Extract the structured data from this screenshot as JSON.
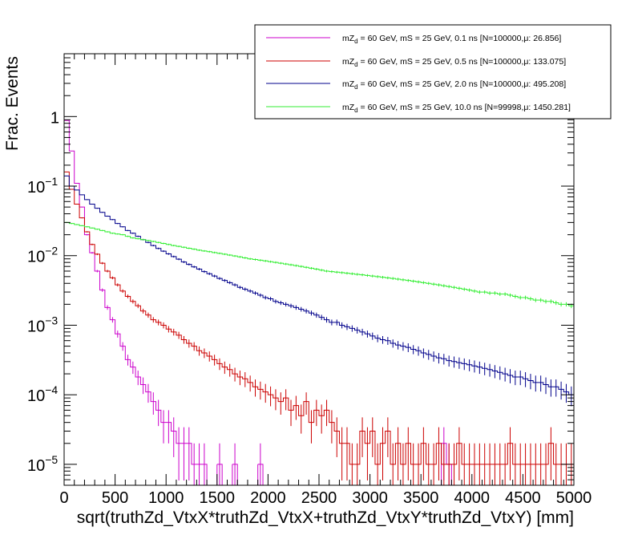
{
  "chart_data": {
    "type": "line",
    "style": "step-histogram-with-error-bars",
    "xlabel": "sqrt(truthZd_VtxX*truthZd_VtxX+truthZd_VtxY*truthZd_VtxY) [mm]",
    "ylabel": "Frac. Events",
    "xlim": [
      0,
      5000
    ],
    "ylim": [
      5e-06,
      8
    ],
    "y_scale": "log",
    "x_ticks": [
      0,
      500,
      1000,
      1500,
      2000,
      2500,
      3000,
      3500,
      4000,
      4500,
      5000
    ],
    "x_tick_labels": [
      "0",
      "500",
      "1000",
      "1500",
      "2000",
      "2500",
      "3000",
      "3500",
      "4000",
      "4500",
      "5000"
    ],
    "y_ticks": [
      1e-05,
      0.0001,
      0.001,
      0.01,
      0.1,
      1
    ],
    "y_tick_labels": [
      {
        "base": "10",
        "exp": "−5"
      },
      {
        "base": "10",
        "exp": "−4"
      },
      {
        "base": "10",
        "exp": "−3"
      },
      {
        "base": "10",
        "exp": "−2"
      },
      {
        "base": "10",
        "exp": "−1"
      },
      {
        "base": "1",
        "exp": ""
      }
    ],
    "bin_width": 50,
    "grid": false,
    "legend_position": "top-right",
    "series": [
      {
        "name": "mZ_d = 60 GeV, mS = 25 GeV, 0.1 ns [N=100000,μ: 26.856]",
        "name_pre": "mZ",
        "name_sub": "d",
        "name_post": " = 60 GeV, mS = 25 GeV, 0.1 ns [N=100000,μ: 26.856]",
        "color": "#cc00cc",
        "bins_x_start": 0,
        "values": [
          0.88,
          0.32,
          0.11,
          0.05,
          0.02,
          0.011,
          0.006,
          0.0032,
          0.0018,
          0.0012,
          0.00075,
          0.0005,
          0.00032,
          0.00025,
          0.00018,
          0.00014,
          0.00011,
          8e-05,
          6e-05,
          4e-05,
          4e-05,
          3e-05,
          2e-05,
          2e-05,
          2e-05,
          1e-05,
          1e-05,
          1e-05,
          0,
          0,
          1e-05,
          0,
          0,
          1e-05,
          0,
          0,
          0,
          0,
          1e-05,
          0,
          0,
          0,
          0,
          0,
          0,
          0,
          0,
          0,
          0,
          0,
          0,
          0,
          0,
          0,
          0,
          0,
          0,
          0,
          0,
          0,
          0,
          0,
          0,
          0,
          0,
          0,
          0,
          0,
          0,
          0,
          0,
          0,
          0,
          0,
          2e-05,
          1e-05
        ]
      },
      {
        "name": "mZ_d = 60 GeV, mS = 25 GeV, 0.5 ns [N=100000,μ: 133.075]",
        "name_pre": "mZ",
        "name_sub": "d",
        "name_post": " = 60 GeV, mS = 25 GeV, 0.5 ns [N=100000,μ: 133.075]",
        "color": "#cc0000",
        "bins_x_start": 0,
        "values": [
          0.16,
          0.09,
          0.055,
          0.035,
          0.022,
          0.0145,
          0.0105,
          0.0078,
          0.006,
          0.0048,
          0.0038,
          0.0031,
          0.0026,
          0.0022,
          0.0019,
          0.0016,
          0.0014,
          0.0012,
          0.0011,
          0.001,
          0.00088,
          0.0008,
          0.00072,
          0.00062,
          0.00055,
          0.0005,
          0.00043,
          0.0004,
          0.00036,
          0.00032,
          0.00028,
          0.00025,
          0.00023,
          0.0002,
          0.00018,
          0.00017,
          0.00015,
          0.00013,
          0.00012,
          0.00011,
          0.0001,
          9e-05,
          8e-05,
          9e-05,
          6e-05,
          7e-05,
          5e-05,
          8e-05,
          4e-05,
          6e-05,
          5e-05,
          6e-05,
          4e-05,
          3e-05,
          2e-05,
          2e-05,
          1e-05,
          1e-05,
          3e-05,
          2e-05,
          3e-05,
          1e-05,
          2e-05,
          3e-05,
          1e-05,
          2e-05,
          1e-05,
          2e-05,
          1e-05,
          1e-05,
          2e-05,
          1e-05,
          1e-05,
          2e-05,
          1e-05,
          1e-05,
          1e-05,
          2e-05,
          1e-05,
          1e-05,
          1e-05,
          1e-05,
          1e-05,
          1e-05,
          1e-05,
          1e-05,
          1e-05,
          2e-05,
          1e-05,
          1e-05,
          1e-05,
          1e-05,
          1e-05,
          1e-05,
          1e-05,
          2e-05,
          1e-05,
          1e-05,
          1e-05,
          1e-05
        ]
      },
      {
        "name": "mZ_d = 60 GeV, mS = 25 GeV, 2.0 ns [N=100000,μ: 495.208]",
        "name_pre": "mZ",
        "name_sub": "d",
        "name_post": " = 60 GeV, mS = 25 GeV, 2.0 ns [N=100000,μ: 495.208]",
        "color": "#00008b",
        "bins_x_start": 0,
        "values": [
          0.14,
          0.1,
          0.088,
          0.075,
          0.064,
          0.055,
          0.048,
          0.042,
          0.037,
          0.033,
          0.029,
          0.026,
          0.023,
          0.021,
          0.019,
          0.017,
          0.0155,
          0.014,
          0.0127,
          0.0116,
          0.0106,
          0.0097,
          0.0089,
          0.0081,
          0.0075,
          0.0069,
          0.0064,
          0.0059,
          0.0055,
          0.0051,
          0.0047,
          0.0044,
          0.0041,
          0.0038,
          0.0035,
          0.0033,
          0.0031,
          0.0029,
          0.0027,
          0.0025,
          0.0024,
          0.0022,
          0.0021,
          0.002,
          0.0019,
          0.0018,
          0.0017,
          0.0016,
          0.0015,
          0.0014,
          0.0013,
          0.0012,
          0.0011,
          0.0011,
          0.001,
          0.00095,
          0.0009,
          0.00085,
          0.0008,
          0.00075,
          0.0007,
          0.00065,
          0.00062,
          0.0006,
          0.00055,
          0.00052,
          0.0005,
          0.00048,
          0.00045,
          0.00043,
          0.0004,
          0.00038,
          0.00036,
          0.00034,
          0.00033,
          0.00031,
          0.0003,
          0.00029,
          0.00028,
          0.00027,
          0.00026,
          0.00025,
          0.00024,
          0.00023,
          0.00022,
          0.00021,
          0.0002,
          0.00019,
          0.00018,
          0.00018,
          0.00017,
          0.00016,
          0.00015,
          0.00015,
          0.00014,
          0.00013,
          0.00013,
          0.00012,
          0.00011,
          0.0001
        ]
      },
      {
        "name": "mZ_d = 60 GeV, mS = 25 GeV, 10.0 ns [N=99998,μ: 1450.281]",
        "name_pre": "mZ",
        "name_sub": "d",
        "name_post": " = 60 GeV, mS = 25 GeV, 10.0 ns [N=99998,μ: 1450.281]",
        "color": "#33ee33",
        "bins_x_start": 0,
        "values": [
          0.03,
          0.029,
          0.028,
          0.027,
          0.026,
          0.025,
          0.024,
          0.023,
          0.022,
          0.021,
          0.0205,
          0.02,
          0.019,
          0.018,
          0.0175,
          0.017,
          0.0165,
          0.016,
          0.0155,
          0.015,
          0.0145,
          0.014,
          0.0136,
          0.0132,
          0.0128,
          0.0124,
          0.012,
          0.0117,
          0.0114,
          0.0111,
          0.0108,
          0.0105,
          0.0102,
          0.0099,
          0.0096,
          0.0093,
          0.009,
          0.0088,
          0.0086,
          0.0084,
          0.0082,
          0.008,
          0.0078,
          0.0076,
          0.0074,
          0.0072,
          0.007,
          0.0068,
          0.0066,
          0.0064,
          0.0062,
          0.006,
          0.0059,
          0.0058,
          0.0057,
          0.0056,
          0.0055,
          0.0054,
          0.0053,
          0.0052,
          0.0051,
          0.005,
          0.0049,
          0.0048,
          0.0047,
          0.0046,
          0.0045,
          0.0044,
          0.0043,
          0.0042,
          0.0041,
          0.004,
          0.0039,
          0.0038,
          0.0037,
          0.0036,
          0.0035,
          0.0034,
          0.0033,
          0.0032,
          0.0031,
          0.003,
          0.003,
          0.0029,
          0.0029,
          0.0028,
          0.0028,
          0.0027,
          0.0026,
          0.0025,
          0.0025,
          0.0024,
          0.0023,
          0.0023,
          0.0022,
          0.0022,
          0.0021,
          0.002,
          0.002,
          0.0019
        ]
      }
    ]
  }
}
